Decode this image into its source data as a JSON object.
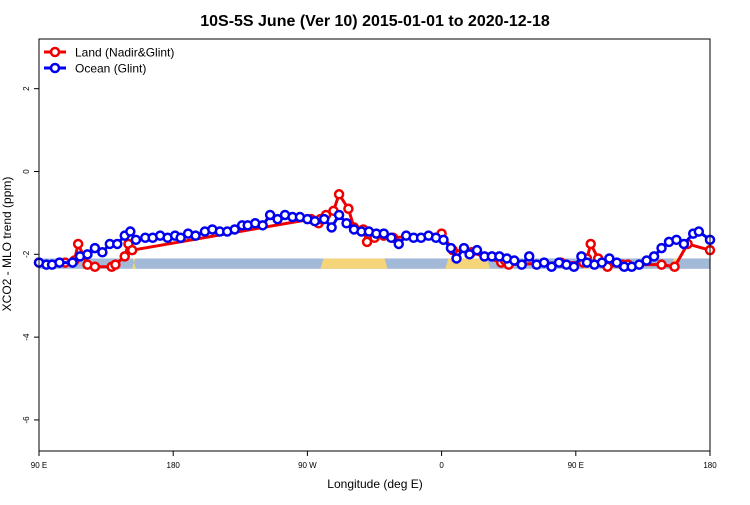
{
  "chart_data": {
    "type": "line",
    "title": "10S-5S June (Ver 10)   2015-01-01 to 2020-12-18",
    "xlabel": "Longitude (deg E)",
    "ylabel": "XCO2 - MLO trend (ppm)",
    "xlim": [
      90,
      450
    ],
    "ylim": [
      -6.75,
      3.2
    ],
    "grid": false,
    "legend_position": "top-left",
    "x_ticks": [
      {
        "value": 90,
        "label": "90 E"
      },
      {
        "value": 162,
        "label": "180"
      },
      {
        "value": 234,
        "label": "90 W"
      },
      {
        "value": 306,
        "label": "0"
      },
      {
        "value": 378,
        "label": "90 E"
      },
      {
        "value": 450,
        "label": "180"
      }
    ],
    "y_ticks": [
      {
        "value": 2,
        "label": "2"
      },
      {
        "value": 0,
        "label": "0"
      },
      {
        "value": -2,
        "label": "-2"
      },
      {
        "value": -4,
        "label": "-4"
      },
      {
        "value": -6,
        "label": "-6"
      }
    ],
    "surface_band": {
      "y_low": -2.35,
      "y_high": -2.1,
      "ocean_color": "#a3b9d8",
      "land_color": "#f6d57a",
      "land_ranges": [
        [
          140,
          142
        ],
        [
          241,
          277
        ],
        [
          308,
          332
        ],
        [
          382,
          386
        ],
        [
          429,
          434
        ]
      ]
    },
    "series": [
      {
        "name": "Land (Nadir&Glint)",
        "color": "#ee0000",
        "x": [
          90,
          104,
          109,
          111,
          116,
          120,
          129,
          131,
          136,
          138,
          140,
          236,
          240,
          241,
          244,
          248,
          251,
          256,
          259,
          264,
          266,
          270,
          275,
          280,
          306,
          312,
          322,
          338,
          340,
          342,
          370,
          382,
          384,
          386,
          390,
          395,
          403,
          406,
          424,
          431,
          438,
          450
        ],
        "y": [
          -2.2,
          -2.2,
          -2.15,
          -1.75,
          -2.25,
          -2.3,
          -2.3,
          -2.25,
          -2.05,
          -1.75,
          -1.9,
          -1.15,
          -1.25,
          -1.15,
          -1.05,
          -0.95,
          -0.55,
          -0.9,
          -1.35,
          -1.4,
          -1.7,
          -1.6,
          -1.55,
          -1.6,
          -1.5,
          -1.9,
          -1.95,
          -2.2,
          -2.15,
          -2.25,
          -2.2,
          -2.2,
          -2.1,
          -1.75,
          -2.1,
          -2.3,
          -2.25,
          -2.25,
          -2.25,
          -2.3,
          -1.75,
          -1.9
        ]
      },
      {
        "name": "Ocean (Glint)",
        "color": "#0000ee",
        "x": [
          90,
          94,
          97,
          101,
          108,
          112,
          116,
          120,
          124,
          128,
          132,
          136,
          139,
          142,
          147,
          151,
          155,
          159,
          163,
          166,
          170,
          174,
          179,
          183,
          187,
          191,
          195,
          199,
          202,
          206,
          210,
          214,
          218,
          222,
          226,
          230,
          234,
          238,
          243,
          247,
          251,
          255,
          259,
          263,
          267,
          271,
          275,
          279,
          283,
          287,
          291,
          295,
          299,
          303,
          307,
          311,
          314,
          318,
          321,
          325,
          329,
          333,
          337,
          341,
          345,
          349,
          353,
          357,
          361,
          365,
          369,
          373,
          377,
          381,
          384,
          388,
          392,
          396,
          400,
          404,
          408,
          412,
          416,
          420,
          424,
          428,
          432,
          436,
          441,
          444,
          450
        ],
        "y": [
          -2.2,
          -2.25,
          -2.25,
          -2.2,
          -2.2,
          -2.05,
          -2.0,
          -1.85,
          -1.95,
          -1.75,
          -1.75,
          -1.55,
          -1.45,
          -1.65,
          -1.6,
          -1.6,
          -1.55,
          -1.6,
          -1.55,
          -1.6,
          -1.5,
          -1.55,
          -1.45,
          -1.4,
          -1.45,
          -1.45,
          -1.4,
          -1.3,
          -1.3,
          -1.25,
          -1.3,
          -1.05,
          -1.15,
          -1.05,
          -1.1,
          -1.1,
          -1.15,
          -1.2,
          -1.15,
          -1.35,
          -1.05,
          -1.25,
          -1.4,
          -1.45,
          -1.45,
          -1.5,
          -1.5,
          -1.6,
          -1.75,
          -1.55,
          -1.6,
          -1.6,
          -1.55,
          -1.6,
          -1.65,
          -1.85,
          -2.1,
          -1.85,
          -2.0,
          -1.9,
          -2.05,
          -2.05,
          -2.05,
          -2.1,
          -2.15,
          -2.25,
          -2.05,
          -2.25,
          -2.2,
          -2.3,
          -2.2,
          -2.25,
          -2.3,
          -2.05,
          -2.2,
          -2.25,
          -2.2,
          -2.1,
          -2.2,
          -2.3,
          -2.3,
          -2.25,
          -2.15,
          -2.05,
          -1.85,
          -1.7,
          -1.65,
          -1.75,
          -1.5,
          -1.45,
          -1.65
        ]
      }
    ]
  }
}
